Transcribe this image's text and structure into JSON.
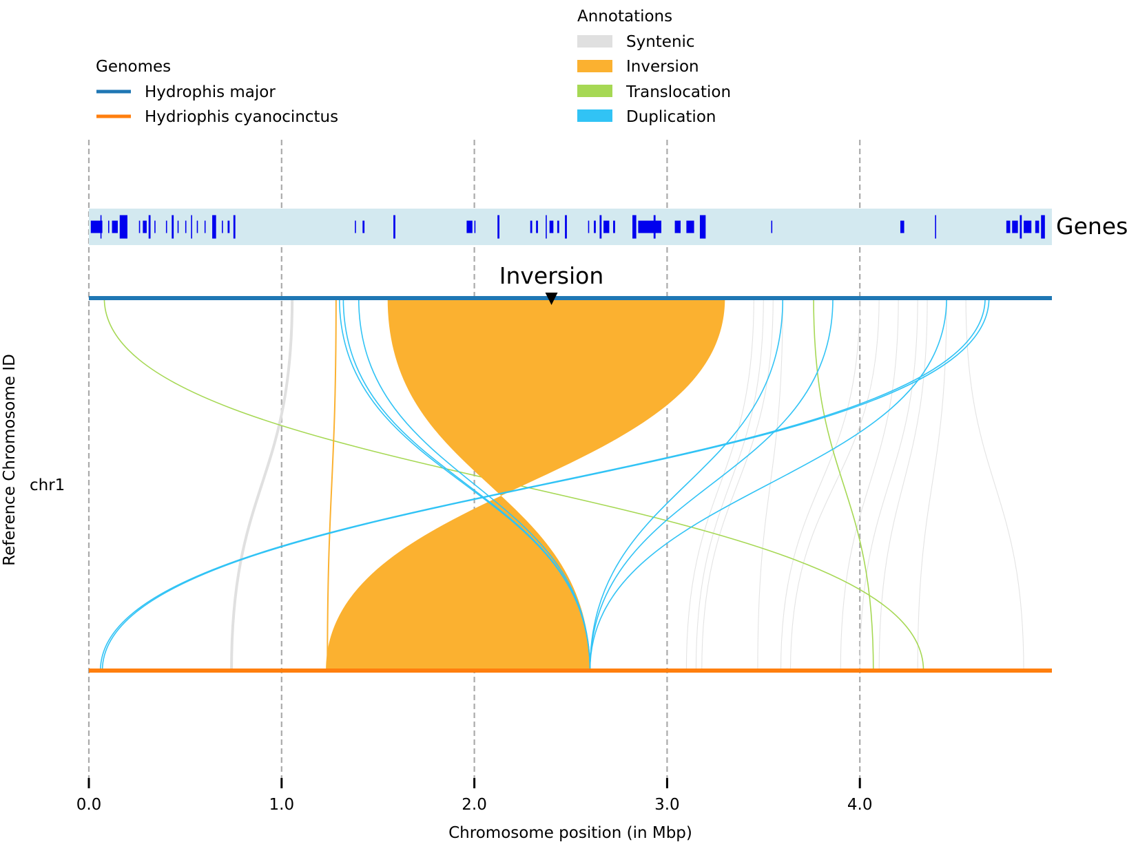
{
  "chart_data": {
    "type": "synteny",
    "xlabel": "Chromosome position (in Mbp)",
    "ylabel": "Reference Chromosome ID",
    "chromosome": "chr1",
    "xlim": [
      0,
      5.0
    ],
    "xticks": [
      0.0,
      1.0,
      2.0,
      3.0,
      4.0
    ],
    "xtick_labels": [
      "0.0",
      "1.0",
      "2.0",
      "3.0",
      "4.0"
    ],
    "genomes_legend": {
      "title": "Genomes",
      "entries": [
        {
          "name": "Hydrophis major",
          "color": "#1f77b4"
        },
        {
          "name": "Hydriophis cyanocinctus",
          "color": "#ff7f0e"
        }
      ]
    },
    "annotations_legend": {
      "title": "Annotations",
      "entries": [
        {
          "name": "Syntenic",
          "color": "#e0e0e0"
        },
        {
          "name": "Inversion",
          "color": "#fbb130"
        },
        {
          "name": "Translocation",
          "color": "#a6d854"
        },
        {
          "name": "Duplication",
          "color": "#31c3f5"
        }
      ]
    },
    "genes_track": {
      "label": "Genes",
      "band_color": "#d3e9f0",
      "gene_color": "#0000ee",
      "genes": [
        [
          0.01,
          0.07
        ],
        [
          0.06,
          0.065
        ],
        [
          0.1,
          0.105
        ],
        [
          0.12,
          0.15
        ],
        [
          0.16,
          0.2
        ],
        [
          0.26,
          0.265
        ],
        [
          0.28,
          0.3
        ],
        [
          0.31,
          0.32
        ],
        [
          0.34,
          0.345
        ],
        [
          0.4,
          0.405
        ],
        [
          0.43,
          0.44
        ],
        [
          0.46,
          0.465
        ],
        [
          0.5,
          0.505
        ],
        [
          0.53,
          0.535
        ],
        [
          0.56,
          0.565
        ],
        [
          0.6,
          0.605
        ],
        [
          0.64,
          0.66
        ],
        [
          0.69,
          0.695
        ],
        [
          0.72,
          0.73
        ],
        [
          0.75,
          0.76
        ],
        [
          1.38,
          1.385
        ],
        [
          1.42,
          1.43
        ],
        [
          1.58,
          1.59
        ],
        [
          1.96,
          1.99
        ],
        [
          2.0,
          2.005
        ],
        [
          2.12,
          2.13
        ],
        [
          2.29,
          2.3
        ],
        [
          2.32,
          2.33
        ],
        [
          2.37,
          2.375
        ],
        [
          2.39,
          2.41
        ],
        [
          2.43,
          2.44
        ],
        [
          2.47,
          2.48
        ],
        [
          2.59,
          2.595
        ],
        [
          2.62,
          2.63
        ],
        [
          2.65,
          2.66
        ],
        [
          2.67,
          2.7
        ],
        [
          2.72,
          2.73
        ],
        [
          2.82,
          2.84
        ],
        [
          2.85,
          2.97
        ],
        [
          2.88,
          2.885
        ],
        [
          2.93,
          2.94
        ],
        [
          3.04,
          3.07
        ],
        [
          3.1,
          3.14
        ],
        [
          3.17,
          3.2
        ],
        [
          3.54,
          3.545
        ],
        [
          4.21,
          4.23
        ],
        [
          4.39,
          4.395
        ],
        [
          4.76,
          4.78
        ],
        [
          4.79,
          4.82
        ],
        [
          4.83,
          4.84
        ],
        [
          4.85,
          4.89
        ],
        [
          4.91,
          4.93
        ],
        [
          4.94,
          4.96
        ]
      ]
    },
    "inversion_marker": {
      "label": "Inversion",
      "x": 2.4
    },
    "links": [
      {
        "type": "Inversion",
        "ref": [
          1.55,
          3.3
        ],
        "qry": [
          2.6,
          1.23
        ]
      },
      {
        "type": "Inversion",
        "ref": [
          1.28,
          1.285
        ],
        "qry": [
          1.235,
          1.24
        ]
      },
      {
        "type": "Syntenic",
        "ref": [
          1.05,
          1.06
        ],
        "qry": [
          0.73,
          0.75
        ]
      },
      {
        "type": "Syntenic",
        "ref": [
          3.45
        ],
        "qry": [
          3.1
        ]
      },
      {
        "type": "Syntenic",
        "ref": [
          3.5
        ],
        "qry": [
          3.15
        ]
      },
      {
        "type": "Syntenic",
        "ref": [
          3.55
        ],
        "qry": [
          3.18
        ]
      },
      {
        "type": "Syntenic",
        "ref": [
          3.6
        ],
        "qry": [
          3.47
        ]
      },
      {
        "type": "Syntenic",
        "ref": [
          4.0
        ],
        "qry": [
          3.59
        ]
      },
      {
        "type": "Syntenic",
        "ref": [
          4.1
        ],
        "qry": [
          3.64
        ]
      },
      {
        "type": "Syntenic",
        "ref": [
          4.2
        ],
        "qry": [
          3.9
        ]
      },
      {
        "type": "Syntenic",
        "ref": [
          4.3
        ],
        "qry": [
          4.0
        ]
      },
      {
        "type": "Syntenic",
        "ref": [
          4.35
        ],
        "qry": [
          4.1
        ]
      },
      {
        "type": "Syntenic",
        "ref": [
          4.45
        ],
        "qry": [
          4.3
        ]
      },
      {
        "type": "Syntenic",
        "ref": [
          4.55
        ],
        "qry": [
          4.85
        ]
      },
      {
        "type": "Translocation",
        "ref": [
          0.08
        ],
        "qry": [
          4.33
        ]
      },
      {
        "type": "Translocation",
        "ref": [
          3.76
        ],
        "qry": [
          4.07
        ]
      },
      {
        "type": "Duplication",
        "ref": [
          1.3
        ],
        "qry": [
          2.6
        ]
      },
      {
        "type": "Duplication",
        "ref": [
          1.32
        ],
        "qry": [
          2.6
        ]
      },
      {
        "type": "Duplication",
        "ref": [
          1.4
        ],
        "qry": [
          2.6
        ]
      },
      {
        "type": "Duplication",
        "ref": [
          3.6
        ],
        "qry": [
          2.6
        ]
      },
      {
        "type": "Duplication",
        "ref": [
          3.86
        ],
        "qry": [
          2.6
        ]
      },
      {
        "type": "Duplication",
        "ref": [
          4.45
        ],
        "qry": [
          2.6
        ]
      },
      {
        "type": "Duplication",
        "ref": [
          4.65
        ],
        "qry": [
          0.06
        ]
      },
      {
        "type": "Duplication",
        "ref": [
          4.67
        ],
        "qry": [
          0.07
        ]
      }
    ]
  }
}
